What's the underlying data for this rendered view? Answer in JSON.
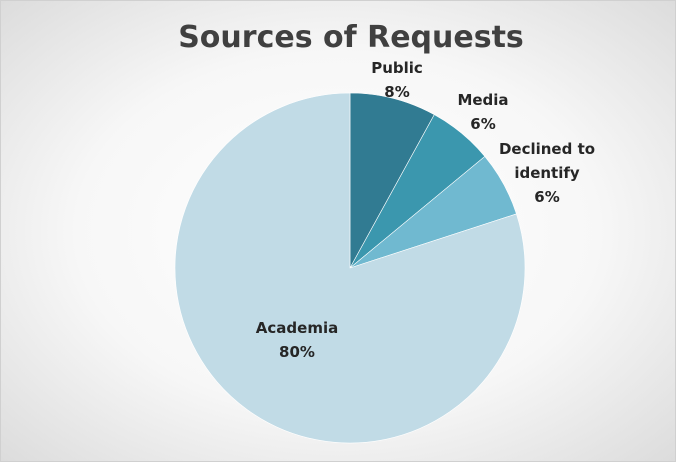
{
  "chart_data": {
    "type": "pie",
    "title": "Sources of Requests",
    "slices": [
      {
        "label": "Public",
        "value": 8,
        "label_text": [
          "Public",
          "8%"
        ],
        "color": "#317b92"
      },
      {
        "label": "Media",
        "value": 6,
        "label_text": [
          "Media",
          "6%"
        ],
        "color": "#3b97ae"
      },
      {
        "label": "Declined to identify",
        "value": 6,
        "label_text": [
          "Declined to",
          "identify",
          "6%"
        ],
        "color": "#70b9d0"
      },
      {
        "label": "Academia",
        "value": 80,
        "label_text": [
          "Academia",
          "80%"
        ],
        "color": "#c1dbe6"
      }
    ],
    "legend": "none"
  }
}
